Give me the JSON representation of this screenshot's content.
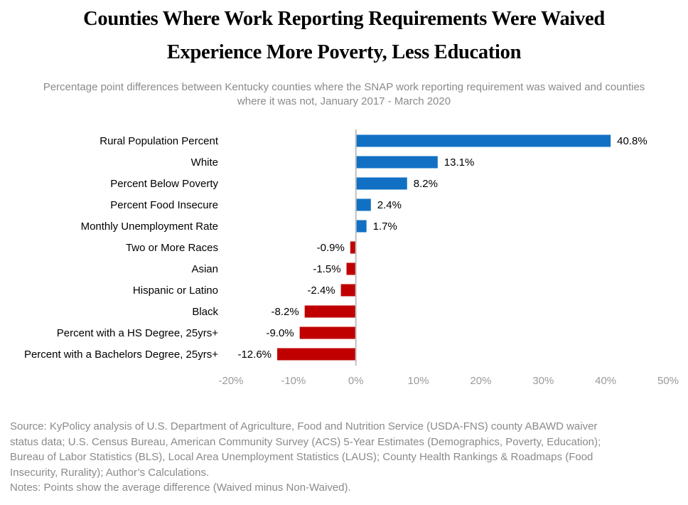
{
  "title_lines": [
    "Counties Where Work Reporting Requirements Were Waived",
    "Experience More Poverty, Less Education"
  ],
  "subtitle_lines": [
    "Percentage point differences between Kentucky counties where the SNAP work reporting requirement was waived and counties",
    "where it was not, January 2017 - March 2020"
  ],
  "colors": {
    "positive": "#1170c3",
    "negative": "#c00000",
    "axis": "#bfbfbf"
  },
  "chart_data": {
    "type": "bar",
    "orientation": "horizontal",
    "title": "Counties Where Work Reporting Requirements Were Waived Experience More Poverty, Less Education",
    "categories": [
      "Rural Population Percent",
      "White",
      "Percent Below Poverty",
      "Percent Food Insecure",
      "Monthly Unemployment Rate",
      "Two or More Races",
      "Asian",
      "Hispanic or Latino",
      "Black",
      "Percent with a HS Degree, 25yrs+",
      "Percent with a Bachelors Degree, 25yrs+"
    ],
    "values": [
      40.8,
      13.1,
      8.2,
      2.4,
      1.7,
      -0.9,
      -1.5,
      -2.4,
      -8.2,
      -9.0,
      -12.6
    ],
    "value_labels": [
      "40.8%",
      "13.1%",
      "8.2%",
      "2.4%",
      "1.7%",
      "-0.9%",
      "-1.5%",
      "-2.4%",
      "-8.2%",
      "-9.0%",
      "-12.6%"
    ],
    "xlim": [
      -20,
      50
    ],
    "xticks": [
      -20,
      -10,
      0,
      10,
      20,
      30,
      40,
      50
    ],
    "xtick_labels": [
      "-20%",
      "-10%",
      "0%",
      "10%",
      "20%",
      "30%",
      "40%",
      "50%"
    ],
    "xlabel": "",
    "ylabel": "",
    "grid": false,
    "legend": "none"
  },
  "source_lines": [
    "Source: KyPolicy analysis of U.S. Department of Agriculture, Food and Nutrition Service (USDA-FNS) county ABAWD waiver",
    "status data; U.S. Census Bureau, American Community Survey (ACS) 5-Year Estimates (Demographics, Poverty, Education);",
    "Bureau of Labor Statistics (BLS), Local Area Unemployment Statistics (LAUS); County Health Rankings & Roadmaps (Food",
    "Insecurity, Rurality); Author’s Calculations.",
    "Notes: Points show the average difference (Waived minus Non-Waived)."
  ]
}
